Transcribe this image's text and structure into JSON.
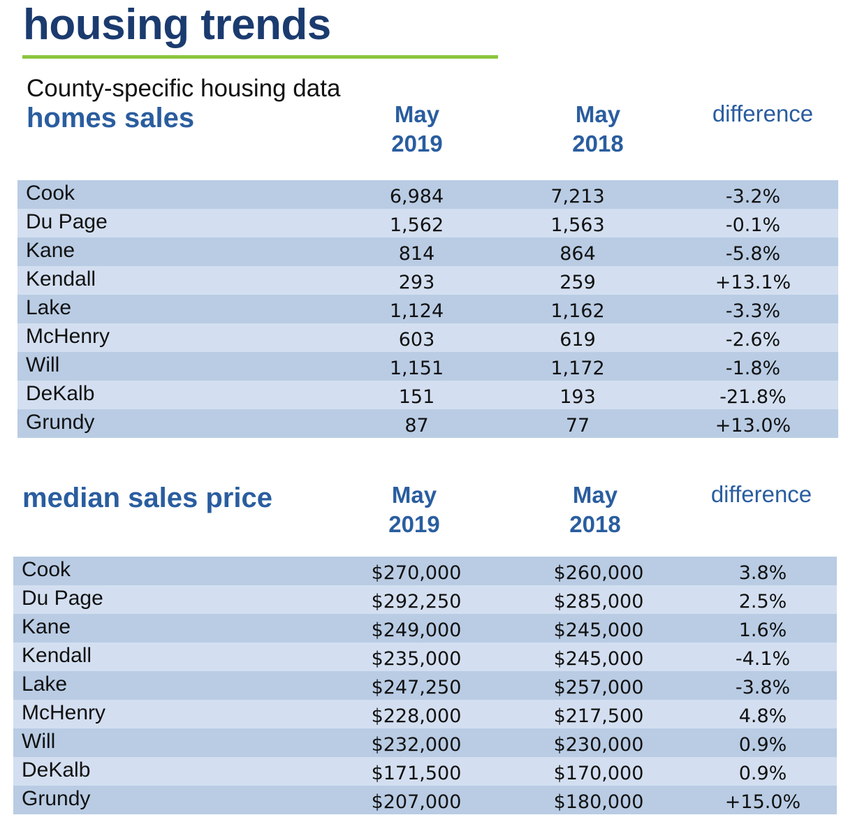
{
  "title": "housing trends",
  "subtitle": "County-specific housing data",
  "sales": {
    "heading": "homes sales",
    "columns": {
      "col1_line1": "May",
      "col1_line2": "2019",
      "col2_line1": "May",
      "col2_line2": "2018",
      "diff": "difference"
    },
    "rows": [
      {
        "county": "Cook",
        "y2019": "6,984",
        "y2018": "7,213",
        "diff": "-3.2%"
      },
      {
        "county": "Du Page",
        "y2019": "1,562",
        "y2018": "1,563",
        "diff": "-0.1%"
      },
      {
        "county": "Kane",
        "y2019": "814",
        "y2018": "864",
        "diff": "-5.8%"
      },
      {
        "county": "Kendall",
        "y2019": "293",
        "y2018": "259",
        "diff": "+13.1%"
      },
      {
        "county": "Lake",
        "y2019": "1,124",
        "y2018": "1,162",
        "diff": "-3.3%"
      },
      {
        "county": "McHenry",
        "y2019": "603",
        "y2018": "619",
        "diff": "-2.6%"
      },
      {
        "county": "Will",
        "y2019": "1,151",
        "y2018": "1,172",
        "diff": "-1.8%"
      },
      {
        "county": "DeKalb",
        "y2019": "151",
        "y2018": "193",
        "diff": "-21.8%"
      },
      {
        "county": "Grundy",
        "y2019": "87",
        "y2018": "77",
        "diff": "+13.0%"
      }
    ]
  },
  "price": {
    "heading": "median sales price",
    "columns": {
      "col1_line1": "May",
      "col1_line2": "2019",
      "col2_line1": "May",
      "col2_line2": "2018",
      "diff": "difference"
    },
    "rows": [
      {
        "county": "Cook",
        "y2019": "$270,000",
        "y2018": "$260,000",
        "diff": "3.8%"
      },
      {
        "county": "Du Page",
        "y2019": "$292,250",
        "y2018": "$285,000",
        "diff": "2.5%"
      },
      {
        "county": "Kane",
        "y2019": "$249,000",
        "y2018": "$245,000",
        "diff": "1.6%"
      },
      {
        "county": "Kendall",
        "y2019": "$235,000",
        "y2018": "$245,000",
        "diff": "-4.1%"
      },
      {
        "county": "Lake",
        "y2019": "$247,250",
        "y2018": "$257,000",
        "diff": "-3.8%"
      },
      {
        "county": "McHenry",
        "y2019": "$228,000",
        "y2018": "$217,500",
        "diff": "4.8%"
      },
      {
        "county": "Will",
        "y2019": "$232,000",
        "y2018": "$230,000",
        "diff": "0.9%"
      },
      {
        "county": "DeKalb",
        "y2019": "$171,500",
        "y2018": "$170,000",
        "diff": "0.9%"
      },
      {
        "county": "Grundy",
        "y2019": "$207,000",
        "y2018": "$180,000",
        "diff": "+15.0%"
      }
    ]
  },
  "colors": {
    "title": "#1b3b6f",
    "accent_rule": "#8cc63f",
    "heading": "#2a5d9f",
    "row_dark": "#b9cce4",
    "row_light": "#d3dff0"
  }
}
